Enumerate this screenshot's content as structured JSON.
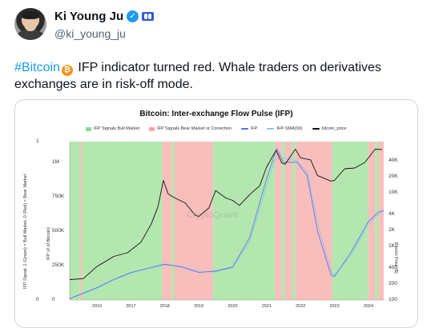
{
  "author": {
    "name": "Ki Young Ju",
    "handle": "@ki_young_ju",
    "verified_icon": "verified-badge-icon",
    "affiliate_icon": "affiliate-badge-icon"
  },
  "tweet": {
    "hashtag": "#Bitcoin",
    "text_part1": " IFP indicator turned red. Whale traders on derivatives",
    "text_part2": "exchanges are in risk-off mode."
  },
  "chart_data": {
    "type": "line",
    "title": "Bitcoin: Inter-exchange Flow Pulse (IFP)",
    "legend": [
      {
        "label": "IFP Signals Bull Market",
        "color": "#8fd88f"
      },
      {
        "label": "IFP Signals Bear Market or Correction",
        "color": "#f4a6a6"
      },
      {
        "label": "IFP",
        "color": "#5b6cf0"
      },
      {
        "label": "IFP-SMA(90)",
        "color": "#7fc6e8"
      },
      {
        "label": "bitcoin_price",
        "color": "#111111"
      }
    ],
    "ylabel_left_outer": "IFP Signal: 1 (Green) = Bull Market, 0 (Red) = Bear Market",
    "ylabel_left_inner": "IFP (# of Bitcoin)",
    "ylabel_right": "Bitcoin Price ($)",
    "signal_ticks": [
      "1",
      "0"
    ],
    "ifp_ticks": [
      "1M",
      "750K",
      "500K",
      "250K",
      "0"
    ],
    "price_ticks": [
      "40K",
      "20K",
      "10K",
      "4K",
      "2K",
      "1K",
      "400",
      "200",
      "100"
    ],
    "x_ticks": [
      "2016",
      "2017",
      "2018",
      "2019",
      "2020",
      "2021",
      "2022",
      "2023",
      "2024"
    ],
    "watermark": "CryptoQuant",
    "regimes": [
      {
        "from": 2015.2,
        "to": 2015.5,
        "signal": 1
      },
      {
        "from": 2015.5,
        "to": 2015.56,
        "signal": 0
      },
      {
        "from": 2015.56,
        "to": 2017.93,
        "signal": 1
      },
      {
        "from": 2017.93,
        "to": 2018.2,
        "signal": 0
      },
      {
        "from": 2018.2,
        "to": 2018.28,
        "signal": 1
      },
      {
        "from": 2018.28,
        "to": 2019.42,
        "signal": 0
      },
      {
        "from": 2019.42,
        "to": 2021.25,
        "signal": 1
      },
      {
        "from": 2021.25,
        "to": 2021.45,
        "signal": 0
      },
      {
        "from": 2021.45,
        "to": 2021.55,
        "signal": 1
      },
      {
        "from": 2021.55,
        "to": 2021.75,
        "signal": 0
      },
      {
        "from": 2021.75,
        "to": 2021.85,
        "signal": 1
      },
      {
        "from": 2021.85,
        "to": 2022.93,
        "signal": 0
      },
      {
        "from": 2022.93,
        "to": 2024.0,
        "signal": 1
      },
      {
        "from": 2024.0,
        "to": 2024.2,
        "signal": 0
      },
      {
        "from": 2024.2,
        "to": 2024.3,
        "signal": 1
      },
      {
        "from": 2024.3,
        "to": 2024.45,
        "signal": 0
      }
    ],
    "series": [
      {
        "name": "bitcoin_price",
        "x": [
          2015.2,
          2015.6,
          2016.0,
          2016.5,
          2016.9,
          2017.3,
          2017.6,
          2017.8,
          2017.96,
          2018.1,
          2018.3,
          2018.6,
          2018.9,
          2019.0,
          2019.3,
          2019.5,
          2019.8,
          2020.0,
          2020.2,
          2020.5,
          2020.8,
          2021.0,
          2021.28,
          2021.45,
          2021.55,
          2021.85,
          2022.0,
          2022.3,
          2022.5,
          2022.9,
          2023.0,
          2023.3,
          2023.6,
          2023.9,
          2024.2,
          2024.4
        ],
        "values": [
          240,
          250,
          420,
          650,
          760,
          1200,
          2600,
          5500,
          17000,
          9500,
          8000,
          6500,
          3800,
          3600,
          5200,
          11000,
          8000,
          7200,
          5800,
          9200,
          13500,
          30000,
          62000,
          36000,
          34000,
          65000,
          45000,
          41000,
          21000,
          16500,
          17000,
          28000,
          29000,
          37000,
          65000,
          64000
        ]
      },
      {
        "name": "IFP",
        "x": [
          2015.2,
          2016.0,
          2016.5,
          2017.0,
          2017.5,
          2018.0,
          2018.5,
          2019.0,
          2019.5,
          2020.0,
          2020.5,
          2021.0,
          2021.3,
          2021.5,
          2021.9,
          2022.2,
          2022.5,
          2022.9,
          2023.0,
          2023.5,
          2024.0,
          2024.3,
          2024.45
        ],
        "values": [
          10000,
          90000,
          150000,
          200000,
          230000,
          260000,
          240000,
          200000,
          210000,
          240000,
          450000,
          880000,
          1100000,
          1000000,
          1000000,
          900000,
          500000,
          180000,
          170000,
          350000,
          570000,
          640000,
          650000
        ]
      },
      {
        "name": "IFP-SMA(90)",
        "x": [
          2015.2,
          2016.0,
          2016.5,
          2017.0,
          2017.5,
          2018.0,
          2018.5,
          2019.0,
          2019.5,
          2020.0,
          2020.5,
          2021.0,
          2021.3,
          2021.5,
          2021.9,
          2022.2,
          2022.5,
          2022.9,
          2023.0,
          2023.5,
          2024.0,
          2024.3,
          2024.45
        ],
        "values": [
          8000,
          85000,
          145000,
          195000,
          228000,
          255000,
          245000,
          205000,
          205000,
          235000,
          420000,
          830000,
          1060000,
          1030000,
          1010000,
          930000,
          560000,
          210000,
          180000,
          330000,
          550000,
          625000,
          645000
        ]
      }
    ]
  }
}
